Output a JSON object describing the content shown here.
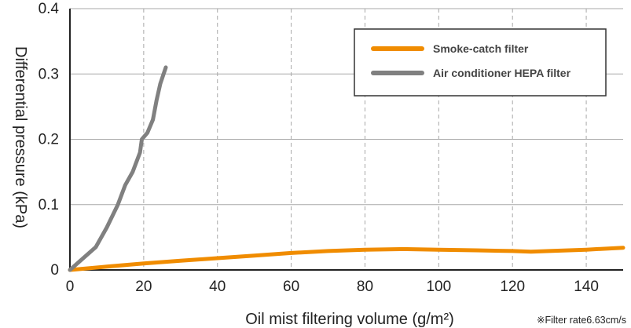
{
  "chart_data": {
    "type": "line",
    "xlabel": "Oil mist filtering volume (g/m²)",
    "ylabel": "Differential pressure (kPa)",
    "note": "※Filter rate6.63cm/s",
    "xlim": [
      0,
      150
    ],
    "ylim": [
      0,
      0.4
    ],
    "xticks": [
      0,
      20,
      40,
      60,
      80,
      100,
      120,
      140
    ],
    "yticks": [
      0,
      0.1,
      0.2,
      0.3,
      0.4
    ],
    "grid": true,
    "legend_position": "top-right",
    "series": [
      {
        "name": "Smoke-catch filter",
        "color": "#f08c00",
        "x": [
          0,
          10,
          20,
          30,
          40,
          50,
          60,
          70,
          80,
          90,
          100,
          110,
          120,
          125,
          130,
          140,
          150
        ],
        "y": [
          0,
          0.005,
          0.01,
          0.014,
          0.018,
          0.022,
          0.026,
          0.029,
          0.031,
          0.032,
          0.031,
          0.03,
          0.029,
          0.028,
          0.029,
          0.031,
          0.034
        ]
      },
      {
        "name": "Air conditioner HEPA filter",
        "color": "#808080",
        "x": [
          0,
          3,
          7,
          10,
          13,
          15,
          17,
          19,
          19.5,
          21,
          22.5,
          23.5,
          24.5,
          26
        ],
        "y": [
          0,
          0.015,
          0.035,
          0.065,
          0.1,
          0.13,
          0.15,
          0.18,
          0.2,
          0.21,
          0.23,
          0.26,
          0.285,
          0.31
        ]
      }
    ]
  }
}
